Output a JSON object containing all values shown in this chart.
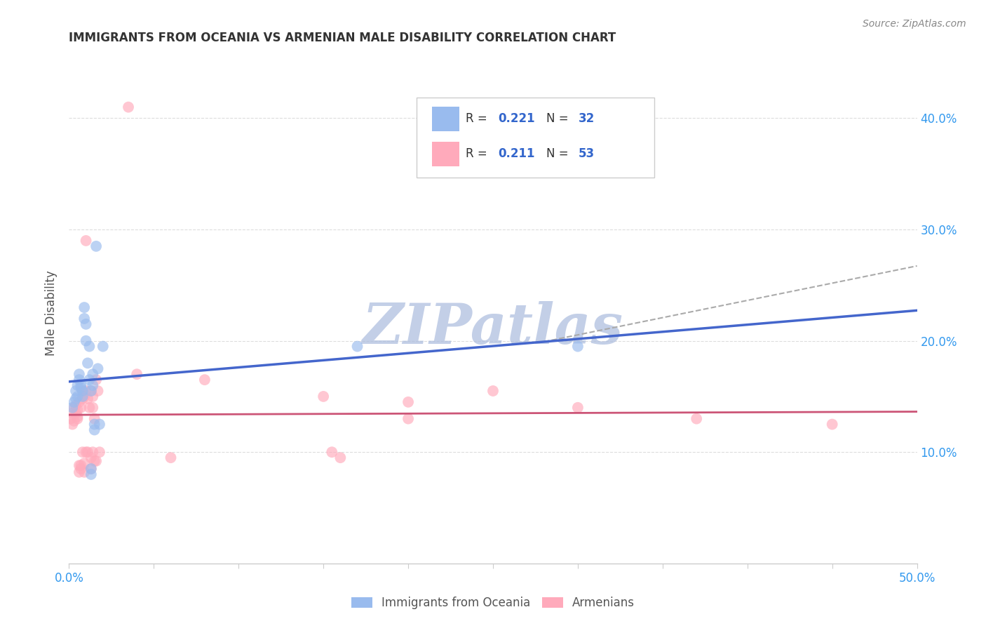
{
  "title": "IMMIGRANTS FROM OCEANIA VS ARMENIAN MALE DISABILITY CORRELATION CHART",
  "source": "Source: ZipAtlas.com",
  "ylabel": "Male Disability",
  "xlim": [
    0.0,
    0.5
  ],
  "ylim": [
    0.0,
    0.45
  ],
  "xticks": [
    0.0,
    0.05,
    0.1,
    0.15,
    0.2,
    0.25,
    0.3,
    0.35,
    0.4,
    0.45,
    0.5
  ],
  "xtick_labels_sparse": {
    "0": "0.0%",
    "10": "50.0%"
  },
  "yticks": [
    0.1,
    0.2,
    0.3,
    0.4
  ],
  "ytick_labels": [
    "10.0%",
    "20.0%",
    "30.0%",
    "40.0%"
  ],
  "blue_color": "#99BBEE",
  "pink_color": "#FFAABB",
  "blue_line_color": "#4466CC",
  "pink_line_color": "#CC5577",
  "legend_blue_label": "Immigrants from Oceania",
  "legend_pink_label": "Armenians",
  "blue_points": [
    [
      0.002,
      0.14
    ],
    [
      0.003,
      0.145
    ],
    [
      0.004,
      0.155
    ],
    [
      0.004,
      0.148
    ],
    [
      0.005,
      0.15
    ],
    [
      0.005,
      0.16
    ],
    [
      0.006,
      0.165
    ],
    [
      0.006,
      0.17
    ],
    [
      0.007,
      0.158
    ],
    [
      0.007,
      0.16
    ],
    [
      0.008,
      0.155
    ],
    [
      0.008,
      0.15
    ],
    [
      0.009,
      0.22
    ],
    [
      0.009,
      0.23
    ],
    [
      0.01,
      0.215
    ],
    [
      0.01,
      0.2
    ],
    [
      0.011,
      0.18
    ],
    [
      0.012,
      0.195
    ],
    [
      0.012,
      0.165
    ],
    [
      0.013,
      0.155
    ],
    [
      0.013,
      0.085
    ],
    [
      0.013,
      0.08
    ],
    [
      0.014,
      0.17
    ],
    [
      0.014,
      0.16
    ],
    [
      0.015,
      0.125
    ],
    [
      0.015,
      0.12
    ],
    [
      0.016,
      0.285
    ],
    [
      0.017,
      0.175
    ],
    [
      0.018,
      0.125
    ],
    [
      0.02,
      0.195
    ],
    [
      0.17,
      0.195
    ],
    [
      0.3,
      0.195
    ]
  ],
  "pink_points": [
    [
      0.001,
      0.13
    ],
    [
      0.002,
      0.125
    ],
    [
      0.002,
      0.135
    ],
    [
      0.003,
      0.128
    ],
    [
      0.003,
      0.14
    ],
    [
      0.004,
      0.135
    ],
    [
      0.004,
      0.142
    ],
    [
      0.005,
      0.132
    ],
    [
      0.005,
      0.138
    ],
    [
      0.005,
      0.13
    ],
    [
      0.006,
      0.088
    ],
    [
      0.006,
      0.082
    ],
    [
      0.006,
      0.145
    ],
    [
      0.007,
      0.14
    ],
    [
      0.007,
      0.088
    ],
    [
      0.007,
      0.085
    ],
    [
      0.008,
      0.1
    ],
    [
      0.008,
      0.155
    ],
    [
      0.008,
      0.148
    ],
    [
      0.009,
      0.15
    ],
    [
      0.009,
      0.09
    ],
    [
      0.009,
      0.082
    ],
    [
      0.01,
      0.1
    ],
    [
      0.01,
      0.29
    ],
    [
      0.01,
      0.155
    ],
    [
      0.011,
      0.148
    ],
    [
      0.011,
      0.1
    ],
    [
      0.012,
      0.14
    ],
    [
      0.013,
      0.155
    ],
    [
      0.013,
      0.095
    ],
    [
      0.013,
      0.085
    ],
    [
      0.014,
      0.15
    ],
    [
      0.014,
      0.14
    ],
    [
      0.014,
      0.1
    ],
    [
      0.015,
      0.092
    ],
    [
      0.015,
      0.13
    ],
    [
      0.016,
      0.092
    ],
    [
      0.016,
      0.165
    ],
    [
      0.017,
      0.155
    ],
    [
      0.018,
      0.1
    ],
    [
      0.035,
      0.41
    ],
    [
      0.04,
      0.17
    ],
    [
      0.06,
      0.095
    ],
    [
      0.08,
      0.165
    ],
    [
      0.15,
      0.15
    ],
    [
      0.155,
      0.1
    ],
    [
      0.16,
      0.095
    ],
    [
      0.2,
      0.145
    ],
    [
      0.2,
      0.13
    ],
    [
      0.25,
      0.155
    ],
    [
      0.3,
      0.14
    ],
    [
      0.37,
      0.13
    ],
    [
      0.45,
      0.125
    ]
  ],
  "background_color": "#FFFFFF",
  "grid_color": "#DDDDDD",
  "watermark_text": "ZIPatlas",
  "watermark_color": "#AABBDD",
  "title_color": "#333333",
  "label_color": "#555555",
  "tick_color": "#3399EE",
  "source_color": "#888888"
}
